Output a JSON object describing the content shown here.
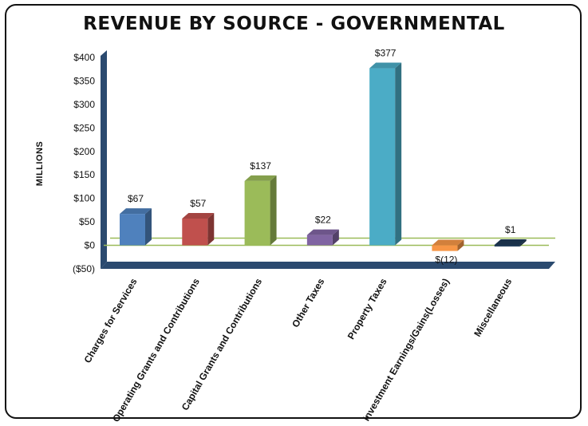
{
  "chart_data": {
    "type": "bar",
    "title": "REVENUE BY SOURCE - GOVERNMENTAL",
    "ylabel": "MILLIONS",
    "xlabel": "",
    "categories": [
      "Charges for Services",
      "Operating Grants and Contributions",
      "Capital Grants and Contributions",
      "Other Taxes",
      "Property Taxes",
      "Investment Earnings/Gains(Losses)",
      "Miscellaneous"
    ],
    "values": [
      67,
      57,
      137,
      22,
      377,
      -12,
      1
    ],
    "data_labels": [
      "$67",
      "$57",
      "$137",
      "$22",
      "$377",
      "$(12)",
      "$1"
    ],
    "colors": [
      "#4f81bd",
      "#c0504d",
      "#9bbb59",
      "#8064a2",
      "#4bacc6",
      "#f79646",
      "#1f3a56"
    ],
    "yticks": [
      -50,
      0,
      50,
      100,
      150,
      200,
      250,
      300,
      350,
      400
    ],
    "ytick_labels": [
      "($50)",
      "$0",
      "$50",
      "$100",
      "$150",
      "$200",
      "$250",
      "$300",
      "$350",
      "$400"
    ],
    "ylim": [
      -50,
      400
    ],
    "grid": false,
    "legend": "none",
    "axis_color": "#2b4a6f",
    "reference_line_color": "#9bbb59"
  }
}
